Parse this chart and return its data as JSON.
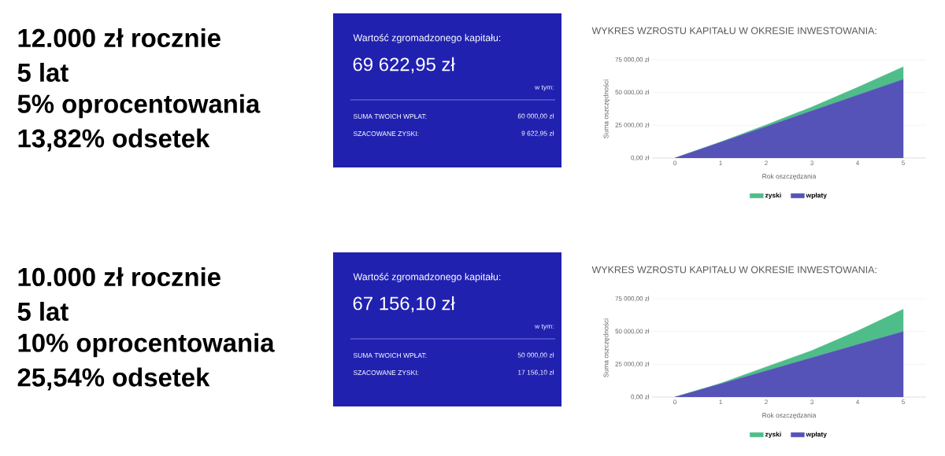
{
  "chart_data": [
    {
      "type": "other",
      "color": "#2121b0",
      "annotations": [
        "12.000 zł rocznie",
        "5 lat",
        "5% oprocentowania",
        "13,82% odsetek",
        "Wartość zgromadzonego kapitału:",
        "69 622,95 zł",
        "w tym:",
        "SUMA TWOICH WPŁAT:",
        "60 000,00 zł",
        "SZACOWANE ZYSKI:",
        "9 622,95 zł"
      ]
    },
    {
      "type": "area",
      "title": "WYKRES WZROSTU KAPITAŁU W OKRESIE INWESTOWANIA:",
      "xlabel": "Rok oszczędzania",
      "ylabel": "Suma oszczędności",
      "stacked": true,
      "grid": "y",
      "legend": "bottom",
      "x": [
        0,
        1,
        2,
        3,
        4,
        5
      ],
      "xlim": [
        -0.5,
        5.5
      ],
      "xticks": [
        0,
        1,
        2,
        3,
        4,
        5
      ],
      "ylim": [
        0,
        75000
      ],
      "yticks": [
        {
          "value": 0,
          "label": "0,00 zł"
        },
        {
          "value": 25000,
          "label": "25 000,00 zł"
        },
        {
          "value": 50000,
          "label": "50 000,00 zł"
        },
        {
          "value": 75000,
          "label": "75 000,00 zł"
        }
      ],
      "series": [
        {
          "name": "wpłaty",
          "color": "#5552b8",
          "values": [
            0,
            12000,
            24000,
            36000,
            48000,
            60000
          ]
        },
        {
          "name": "zyski",
          "color": "#4fbd8a",
          "values": [
            0,
            300,
            1300,
            3000,
            6000,
            9600
          ]
        }
      ]
    },
    {
      "type": "other",
      "color": "#2121b0",
      "annotations": [
        "10.000 zł rocznie",
        "5 lat",
        "10% oprocentowania",
        "25,54% odsetek",
        "Wartość zgromadzonego kapitału:",
        "67 156,10 zł",
        "w tym:",
        "SUMA TWOICH WPŁAT:",
        "50 000,00 zł",
        "SZACOWANE ZYSKI:",
        "17 156,10 zł"
      ]
    },
    {
      "type": "area",
      "title": "WYKRES WZROSTU KAPITAŁU W OKRESIE INWESTOWANIA:",
      "xlabel": "Rok oszczędzania",
      "ylabel": "Suma oszczędności",
      "stacked": true,
      "grid": "y",
      "legend": "bottom",
      "x": [
        0,
        1,
        2,
        3,
        4,
        5
      ],
      "xlim": [
        -0.5,
        5.5
      ],
      "xticks": [
        0,
        1,
        2,
        3,
        4,
        5
      ],
      "ylim": [
        0,
        75000
      ],
      "yticks": [
        {
          "value": 0,
          "label": "0,00 zł"
        },
        {
          "value": 25000,
          "label": "25 000,00 zł"
        },
        {
          "value": 50000,
          "label": "50 000,00 zł"
        },
        {
          "value": 75000,
          "label": "75 000,00 zł"
        }
      ],
      "series": [
        {
          "name": "wpłaty",
          "color": "#5552b8",
          "values": [
            0,
            10000,
            20000,
            30000,
            40000,
            50000
          ]
        },
        {
          "name": "zyski",
          "color": "#4fbd8a",
          "values": [
            0,
            500,
            3000,
            5500,
            10500,
            17000
          ]
        }
      ]
    }
  ]
}
